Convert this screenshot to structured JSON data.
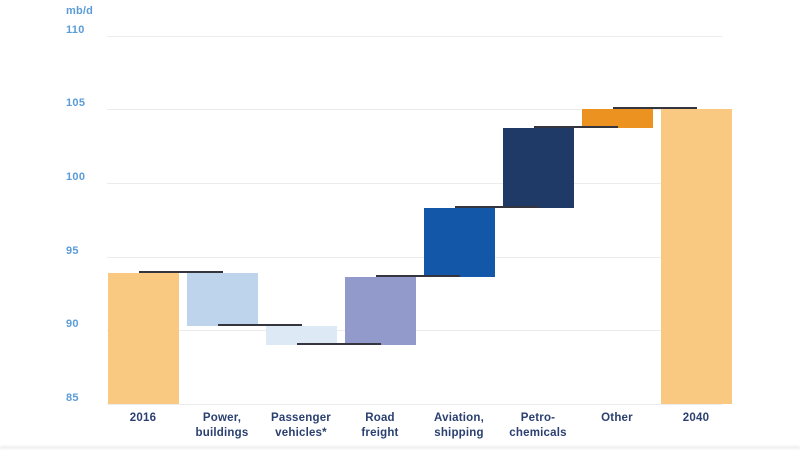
{
  "chart_data": {
    "type": "bar",
    "subtype": "waterfall",
    "title": "",
    "legend": null,
    "grid": "horizontal",
    "y_axis": {
      "label": "mb/d",
      "min": 85,
      "max": 110,
      "ticks": [
        85,
        90,
        95,
        100,
        105,
        110
      ]
    },
    "categories": [
      "2016",
      "Power, buildings",
      "Passenger vehicles*",
      "Road freight",
      "Aviation, shipping",
      "Petro-chemicals",
      "Other",
      "2040"
    ],
    "bars": [
      {
        "label": "2016",
        "label_lines": [
          "2016"
        ],
        "role": "total",
        "start": 85,
        "end": 93.9,
        "value": 93.9,
        "color": "#F9C981"
      },
      {
        "label": "Power, buildings",
        "label_lines": [
          "Power,",
          "buildings"
        ],
        "role": "decrease",
        "start": 93.9,
        "end": 90.3,
        "delta": -3.6,
        "color": "#BDD4EC"
      },
      {
        "label": "Passenger vehicles*",
        "label_lines": [
          "Passenger",
          "vehicles*"
        ],
        "role": "decrease",
        "start": 90.3,
        "end": 89.0,
        "delta": -1.3,
        "color": "#DEE9F6"
      },
      {
        "label": "Road freight",
        "label_lines": [
          "Road",
          "freight"
        ],
        "role": "increase",
        "start": 89.0,
        "end": 93.6,
        "delta": 4.6,
        "color": "#9299CB"
      },
      {
        "label": "Aviation, shipping",
        "label_lines": [
          "Aviation,",
          "shipping"
        ],
        "role": "increase",
        "start": 93.6,
        "end": 98.3,
        "delta": 4.7,
        "color": "#1358A8"
      },
      {
        "label": "Petro-chemicals",
        "label_lines": [
          "Petro-",
          "chemicals"
        ],
        "role": "increase",
        "start": 98.3,
        "end": 103.7,
        "delta": 5.4,
        "color": "#203A68"
      },
      {
        "label": "Other",
        "label_lines": [
          "Other"
        ],
        "role": "increase",
        "start": 103.7,
        "end": 105.0,
        "delta": 1.3,
        "color": "#EC9220"
      },
      {
        "label": "2040",
        "label_lines": [
          "2040"
        ],
        "role": "total",
        "start": 85,
        "end": 105.0,
        "value": 105.0,
        "color": "#F9C981"
      }
    ],
    "colors": {
      "connector": "#35353F",
      "gridline": "#ECECEC",
      "tick_label": "#5B9CD8",
      "category_label": "#2B4070"
    }
  }
}
